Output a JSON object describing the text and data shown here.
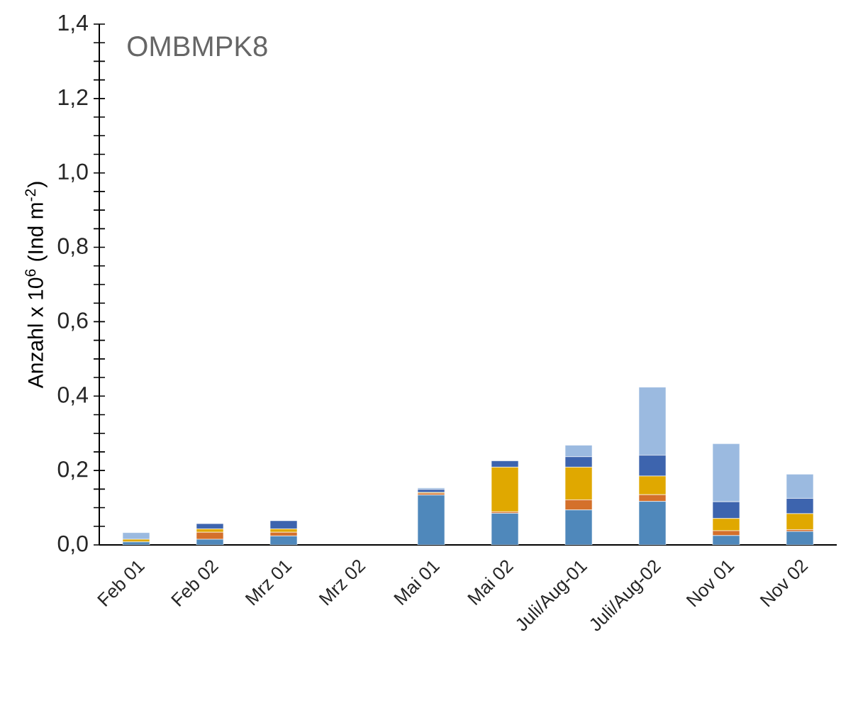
{
  "chart_data": {
    "type": "bar",
    "stacked": true,
    "title": "OMBMPK8",
    "ylabel": "Anzahl x 10$^{6}$ (Ind m$^{-2}$)",
    "categories": [
      "Feb 01",
      "Feb 02",
      "Mrz 01",
      "Mrz 02",
      "Mai 01",
      "Mai 02",
      "Juli/Aug-01",
      "Juli/Aug-02",
      "Nov 01",
      "Nov 02"
    ],
    "series": [
      {
        "color": "#4f88bb",
        "values": [
          0.008,
          0.015,
          0.024,
          0,
          0.134,
          0.085,
          0.094,
          0.117,
          0.025,
          0.036
        ]
      },
      {
        "color": "#d4702b",
        "values": [
          null,
          0.019,
          0.01,
          0,
          0.005,
          0.004,
          0.027,
          0.018,
          0.013,
          0.005
        ]
      },
      {
        "color": "#e0a800",
        "values": [
          0.007,
          0.009,
          0.009,
          0,
          0.002,
          0.12,
          0.088,
          0.05,
          0.033,
          0.043
        ]
      },
      {
        "color": "#3d64ae",
        "values": [
          null,
          0.014,
          0.022,
          0,
          0.008,
          0.017,
          0.028,
          0.056,
          0.045,
          0.041
        ]
      },
      {
        "color": "#9bbae0",
        "values": [
          0.018,
          null,
          null,
          0,
          0.004,
          0,
          0.031,
          0.183,
          0.156,
          0.065
        ]
      }
    ],
    "ylim": [
      0,
      1.4
    ],
    "yticks": [
      {
        "value": 0,
        "label": "0,0"
      },
      {
        "value": 0.05,
        "label": null
      },
      {
        "value": 0.1,
        "label": null
      },
      {
        "value": 0.15,
        "label": null
      },
      {
        "value": 0.2,
        "label": "0,2"
      },
      {
        "value": 0.25,
        "label": null
      },
      {
        "value": 0.3,
        "label": null
      },
      {
        "value": 0.35,
        "label": null
      },
      {
        "value": 0.4,
        "label": "0,4"
      },
      {
        "value": 0.45,
        "label": null
      },
      {
        "value": 0.5,
        "label": null
      },
      {
        "value": 0.55,
        "label": null
      },
      {
        "value": 0.6,
        "label": "0,6"
      },
      {
        "value": 0.65,
        "label": null
      },
      {
        "value": 0.7,
        "label": null
      },
      {
        "value": 0.75,
        "label": null
      },
      {
        "value": 0.8,
        "label": "0,8"
      },
      {
        "value": 0.85,
        "label": null
      },
      {
        "value": 0.9,
        "label": null
      },
      {
        "value": 0.95,
        "label": null
      },
      {
        "value": 1.0,
        "label": "1,0"
      },
      {
        "value": 1.05,
        "label": null
      },
      {
        "value": 1.1,
        "label": null
      },
      {
        "value": 1.15,
        "label": null
      },
      {
        "value": 1.2,
        "label": "1,2"
      },
      {
        "value": 1.25,
        "label": null
      },
      {
        "value": 1.3,
        "label": null
      },
      {
        "value": 1.35,
        "label": null
      },
      {
        "value": 1.4,
        "label": "1,4"
      }
    ]
  }
}
